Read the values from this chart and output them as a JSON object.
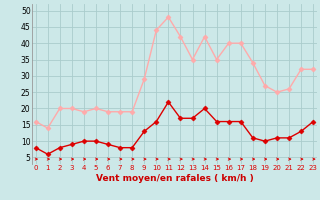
{
  "x": [
    0,
    1,
    2,
    3,
    4,
    5,
    6,
    7,
    8,
    9,
    10,
    11,
    12,
    13,
    14,
    15,
    16,
    17,
    18,
    19,
    20,
    21,
    22,
    23
  ],
  "rafales": [
    16,
    14,
    20,
    20,
    19,
    20,
    19,
    19,
    19,
    29,
    44,
    48,
    42,
    35,
    42,
    35,
    40,
    40,
    34,
    27,
    25,
    26,
    32,
    32
  ],
  "moyen": [
    8,
    6,
    8,
    9,
    10,
    10,
    9,
    8,
    8,
    13,
    16,
    22,
    17,
    17,
    20,
    16,
    16,
    16,
    11,
    10,
    11,
    11,
    13,
    16
  ],
  "rafales_color": "#ffaaaa",
  "moyen_color": "#dd0000",
  "bg_color": "#cce8e8",
  "grid_color": "#aacccc",
  "xlabel": "Vent moyen/en rafales ( km/h )",
  "xlabel_color": "#cc0000",
  "ylabel_ticks": [
    5,
    10,
    15,
    20,
    25,
    30,
    35,
    40,
    45,
    50
  ],
  "ylim": [
    3,
    52
  ],
  "xlim": [
    -0.3,
    23.3
  ],
  "markersize": 2.5,
  "linewidth": 1.0
}
